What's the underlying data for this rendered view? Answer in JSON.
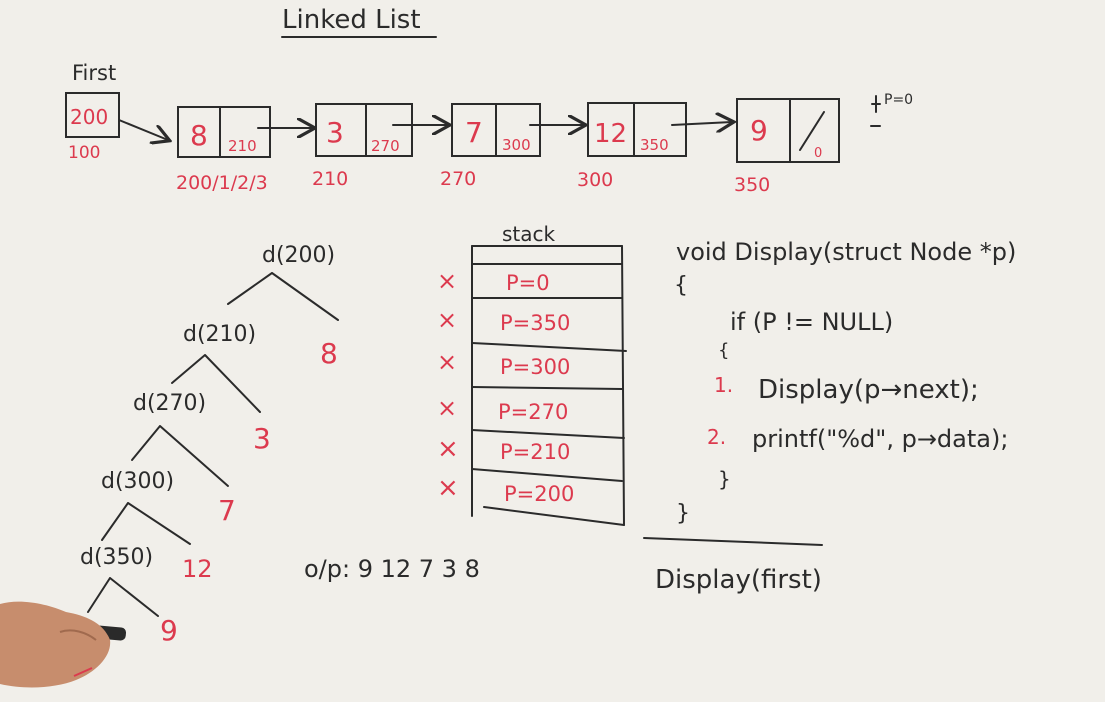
{
  "title": "Linked List",
  "first": {
    "label": "First",
    "value": "200",
    "address": "100"
  },
  "nodes": [
    {
      "data": "8",
      "next": "210",
      "address": "200/1/2/3"
    },
    {
      "data": "3",
      "next": "270",
      "address": "210"
    },
    {
      "data": "7",
      "next": "300",
      "address": "270"
    },
    {
      "data": "12",
      "next": "350",
      "address": "300"
    },
    {
      "data": "9",
      "next": "0",
      "address": "350"
    }
  ],
  "side_note": "P=0",
  "recursion_tree": [
    {
      "call": "d(200)",
      "output": "8"
    },
    {
      "call": "d(210)",
      "output": "3"
    },
    {
      "call": "d(270)",
      "output": "7"
    },
    {
      "call": "d(300)",
      "output": "12"
    },
    {
      "call": "d(350)",
      "output": "9"
    }
  ],
  "stack": {
    "label": "stack",
    "mark": "×",
    "frames": [
      "P=0",
      "P=350",
      "P=300",
      "P=270",
      "P=210",
      "P=200"
    ]
  },
  "output_line": "o/p: 9 12 7 3 8",
  "code": {
    "signature": "void Display(struct Node *p)",
    "open_brace": "{",
    "condition": "if (P != NULL)",
    "inner_open": "{",
    "step1_num": "1.",
    "step1": "Display(p→next);",
    "step2_num": "2.",
    "step2": "printf(\"%d\", p→data);",
    "inner_close": "}",
    "close_brace": "}",
    "call": "Display(first)"
  },
  "colors": {
    "ink": "#2b2b2b",
    "red": "#dc3a4e",
    "board": "#f1efea"
  }
}
